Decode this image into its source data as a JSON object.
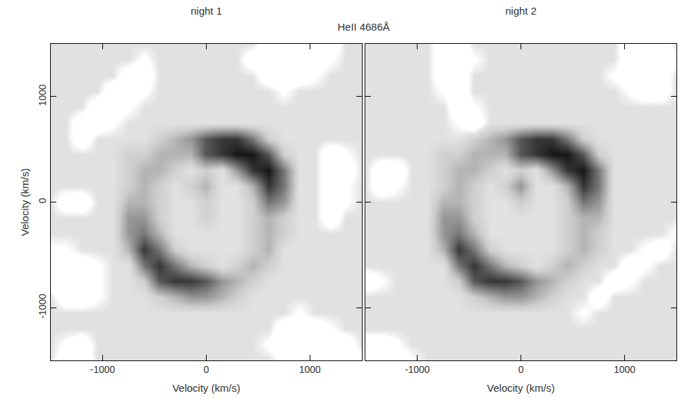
{
  "title": "HeII 4686Å",
  "chart_data": [
    {
      "type": "heatmap",
      "title": "night 1",
      "x_label": "Velocity (km/s)",
      "y_label": "Velocity (km/s)",
      "xlim": [
        -1500,
        1500
      ],
      "ylim": [
        -1500,
        1500
      ],
      "xticks": [
        -1000,
        0,
        1000
      ],
      "yticks": [
        -1000,
        0,
        1000
      ],
      "zlim": [
        0,
        9
      ],
      "x": [
        -1500,
        -1350,
        -1200,
        -1050,
        -900,
        -750,
        -600,
        -450,
        -300,
        -150,
        0,
        150,
        300,
        450,
        600,
        750,
        900,
        1050,
        1200,
        1350,
        1500
      ],
      "y": [
        1500,
        1350,
        1200,
        1050,
        900,
        750,
        600,
        450,
        300,
        150,
        0,
        -150,
        -300,
        -450,
        -600,
        -750,
        -900,
        -1050,
        -1200,
        -1350,
        -1500
      ],
      "z": [
        [
          2,
          2,
          2,
          2,
          2,
          2,
          2,
          2,
          2,
          2,
          2,
          2,
          2,
          2,
          0,
          0,
          0,
          0,
          0,
          2,
          2
        ],
        [
          2,
          2,
          2,
          2,
          2,
          2,
          1,
          2,
          2,
          2,
          2,
          2,
          2,
          0,
          0,
          0,
          0,
          0,
          1,
          2,
          2
        ],
        [
          2,
          2,
          2,
          2,
          2,
          0,
          0,
          2,
          2,
          2,
          2,
          2,
          2,
          2,
          0,
          0,
          0,
          1,
          2,
          2,
          2
        ],
        [
          2,
          2,
          2,
          2,
          0,
          0,
          1,
          2,
          2,
          2,
          2,
          2,
          2,
          2,
          2,
          1,
          2,
          2,
          2,
          2,
          2
        ],
        [
          2,
          2,
          2,
          0,
          0,
          1,
          2,
          2,
          2,
          2,
          2,
          2,
          2,
          2,
          2,
          2,
          2,
          2,
          2,
          2,
          2
        ],
        [
          2,
          2,
          0,
          0,
          1,
          2,
          2,
          2,
          2,
          2,
          2,
          2,
          2,
          2,
          2,
          2,
          2,
          2,
          2,
          2,
          2
        ],
        [
          2,
          2,
          0,
          2,
          2,
          2,
          2,
          3,
          4,
          5,
          7,
          8,
          8,
          6,
          3,
          2,
          2,
          2,
          2,
          2,
          2
        ],
        [
          2,
          2,
          2,
          2,
          2,
          3,
          3,
          4,
          4,
          4,
          7,
          8,
          9,
          9,
          7,
          3,
          2,
          2,
          0,
          1,
          2
        ],
        [
          2,
          2,
          2,
          2,
          2,
          3,
          4,
          4,
          3,
          2,
          3,
          2,
          5,
          8,
          9,
          6,
          2,
          2,
          0,
          0,
          2
        ],
        [
          2,
          2,
          2,
          2,
          2,
          3,
          4,
          3,
          2,
          3,
          4,
          2,
          2,
          4,
          8,
          6,
          2,
          2,
          0,
          1,
          2
        ],
        [
          2,
          0,
          0,
          2,
          2,
          4,
          4,
          3,
          2,
          2,
          3,
          2,
          2,
          3,
          6,
          5,
          2,
          2,
          0,
          1,
          2
        ],
        [
          2,
          2,
          2,
          2,
          2,
          5,
          5,
          3,
          2,
          2,
          3,
          2,
          2,
          3,
          4,
          3,
          2,
          2,
          0,
          2,
          2
        ],
        [
          2,
          2,
          2,
          2,
          2,
          5,
          6,
          4,
          2,
          2,
          2,
          2,
          2,
          3,
          4,
          3,
          2,
          2,
          2,
          2,
          2
        ],
        [
          1,
          1,
          2,
          2,
          2,
          4,
          8,
          6,
          3,
          2,
          2,
          2,
          2,
          3,
          4,
          2,
          2,
          2,
          2,
          2,
          2
        ],
        [
          0,
          0,
          0,
          1,
          2,
          2,
          6,
          8,
          6,
          4,
          3,
          2,
          3,
          4,
          3,
          2,
          2,
          2,
          2,
          2,
          2
        ],
        [
          0,
          0,
          0,
          1,
          2,
          2,
          3,
          7,
          8,
          8,
          7,
          5,
          4,
          3,
          2,
          2,
          2,
          2,
          2,
          2,
          2
        ],
        [
          2,
          0,
          0,
          1,
          2,
          2,
          2,
          3,
          4,
          5,
          5,
          4,
          3,
          2,
          2,
          2,
          2,
          2,
          2,
          2,
          2
        ],
        [
          2,
          2,
          2,
          2,
          2,
          2,
          2,
          2,
          2,
          2,
          2,
          2,
          2,
          2,
          2,
          2,
          1,
          2,
          2,
          2,
          2
        ],
        [
          2,
          2,
          2,
          2,
          2,
          2,
          2,
          2,
          2,
          2,
          2,
          2,
          2,
          2,
          2,
          0,
          0,
          0,
          1,
          2,
          2
        ],
        [
          2,
          1,
          0,
          2,
          2,
          2,
          2,
          2,
          2,
          2,
          2,
          2,
          2,
          2,
          1,
          0,
          0,
          0,
          0,
          0,
          2
        ],
        [
          2,
          0,
          0,
          2,
          2,
          2,
          2,
          2,
          2,
          2,
          2,
          2,
          2,
          2,
          2,
          1,
          0,
          0,
          0,
          0,
          1
        ]
      ]
    },
    {
      "type": "heatmap",
      "title": "night 2",
      "x_label": "Velocity (km/s)",
      "xlim": [
        -1500,
        1500
      ],
      "ylim": [
        -1500,
        1500
      ],
      "xticks": [
        -1000,
        0,
        1000
      ],
      "yticks": [
        -1000,
        0,
        1000
      ],
      "tick_labels": "x",
      "zlim": [
        0,
        9
      ],
      "x": [
        -1500,
        -1350,
        -1200,
        -1050,
        -900,
        -750,
        -600,
        -450,
        -300,
        -150,
        0,
        150,
        300,
        450,
        600,
        750,
        900,
        1050,
        1200,
        1350,
        1500
      ],
      "y": [
        1500,
        1350,
        1200,
        1050,
        900,
        750,
        600,
        450,
        300,
        150,
        0,
        -150,
        -300,
        -450,
        -600,
        -750,
        -900,
        -1050,
        -1200,
        -1350,
        -1500
      ],
      "z": [
        [
          2,
          2,
          2,
          2,
          2,
          0,
          0,
          2,
          2,
          2,
          2,
          2,
          2,
          2,
          2,
          2,
          2,
          0,
          0,
          0,
          2
        ],
        [
          2,
          2,
          2,
          2,
          2,
          0,
          0,
          1,
          2,
          2,
          2,
          2,
          2,
          2,
          2,
          2,
          2,
          0,
          0,
          0,
          1
        ],
        [
          2,
          2,
          2,
          2,
          2,
          0,
          0,
          2,
          2,
          2,
          2,
          2,
          2,
          2,
          2,
          2,
          1,
          0,
          0,
          0,
          2
        ],
        [
          2,
          2,
          2,
          2,
          2,
          1,
          0,
          2,
          2,
          2,
          2,
          2,
          2,
          2,
          2,
          2,
          2,
          1,
          0,
          0,
          2
        ],
        [
          2,
          2,
          2,
          2,
          2,
          2,
          0,
          1,
          2,
          2,
          2,
          2,
          2,
          2,
          2,
          2,
          2,
          2,
          2,
          2,
          2
        ],
        [
          2,
          2,
          2,
          2,
          2,
          2,
          1,
          0,
          2,
          2,
          2,
          2,
          2,
          2,
          2,
          2,
          2,
          2,
          2,
          2,
          2
        ],
        [
          2,
          2,
          2,
          2,
          2,
          2,
          2,
          3,
          4,
          5,
          7,
          8,
          8,
          6,
          3,
          2,
          2,
          2,
          2,
          2,
          2
        ],
        [
          2,
          2,
          2,
          2,
          2,
          3,
          3,
          4,
          4,
          4,
          7,
          8,
          9,
          9,
          7,
          3,
          2,
          2,
          2,
          2,
          2
        ],
        [
          2,
          0,
          0,
          2,
          2,
          3,
          4,
          4,
          3,
          2,
          3,
          2,
          5,
          8,
          9,
          6,
          2,
          2,
          2,
          2,
          2
        ],
        [
          2,
          0,
          1,
          2,
          2,
          3,
          4,
          3,
          2,
          3,
          5,
          2,
          2,
          4,
          8,
          6,
          2,
          2,
          2,
          2,
          2
        ],
        [
          2,
          2,
          2,
          2,
          2,
          4,
          4,
          3,
          2,
          2,
          3,
          2,
          2,
          3,
          6,
          5,
          2,
          2,
          2,
          2,
          2
        ],
        [
          2,
          2,
          2,
          2,
          2,
          5,
          5,
          3,
          2,
          2,
          2,
          2,
          2,
          3,
          4,
          4,
          2,
          2,
          2,
          2,
          2
        ],
        [
          2,
          2,
          2,
          2,
          2,
          5,
          6,
          4,
          2,
          2,
          2,
          2,
          2,
          3,
          4,
          3,
          2,
          2,
          2,
          2,
          1
        ],
        [
          2,
          2,
          2,
          2,
          2,
          4,
          8,
          6,
          3,
          2,
          2,
          2,
          2,
          3,
          4,
          3,
          2,
          2,
          1,
          0,
          2
        ],
        [
          2,
          2,
          2,
          2,
          2,
          2,
          6,
          8,
          6,
          4,
          3,
          2,
          3,
          4,
          3,
          2,
          2,
          0,
          1,
          2,
          2
        ],
        [
          0,
          1,
          2,
          2,
          2,
          2,
          3,
          7,
          8,
          8,
          7,
          5,
          4,
          3,
          2,
          2,
          0,
          1,
          2,
          2,
          2
        ],
        [
          2,
          2,
          2,
          2,
          2,
          2,
          2,
          3,
          4,
          5,
          5,
          4,
          3,
          2,
          2,
          0,
          2,
          2,
          2,
          2,
          2
        ],
        [
          2,
          2,
          2,
          2,
          2,
          2,
          2,
          2,
          2,
          2,
          2,
          2,
          2,
          2,
          1,
          2,
          2,
          2,
          2,
          2,
          2
        ],
        [
          2,
          2,
          2,
          2,
          2,
          2,
          2,
          2,
          2,
          2,
          2,
          2,
          2,
          2,
          2,
          2,
          2,
          2,
          2,
          2,
          2
        ],
        [
          0,
          0,
          1,
          2,
          2,
          2,
          2,
          2,
          2,
          2,
          2,
          2,
          2,
          2,
          2,
          2,
          2,
          2,
          2,
          2,
          2
        ],
        [
          0,
          0,
          0,
          1,
          2,
          2,
          2,
          2,
          2,
          2,
          2,
          2,
          2,
          2,
          2,
          2,
          2,
          2,
          2,
          2,
          2
        ]
      ]
    }
  ]
}
